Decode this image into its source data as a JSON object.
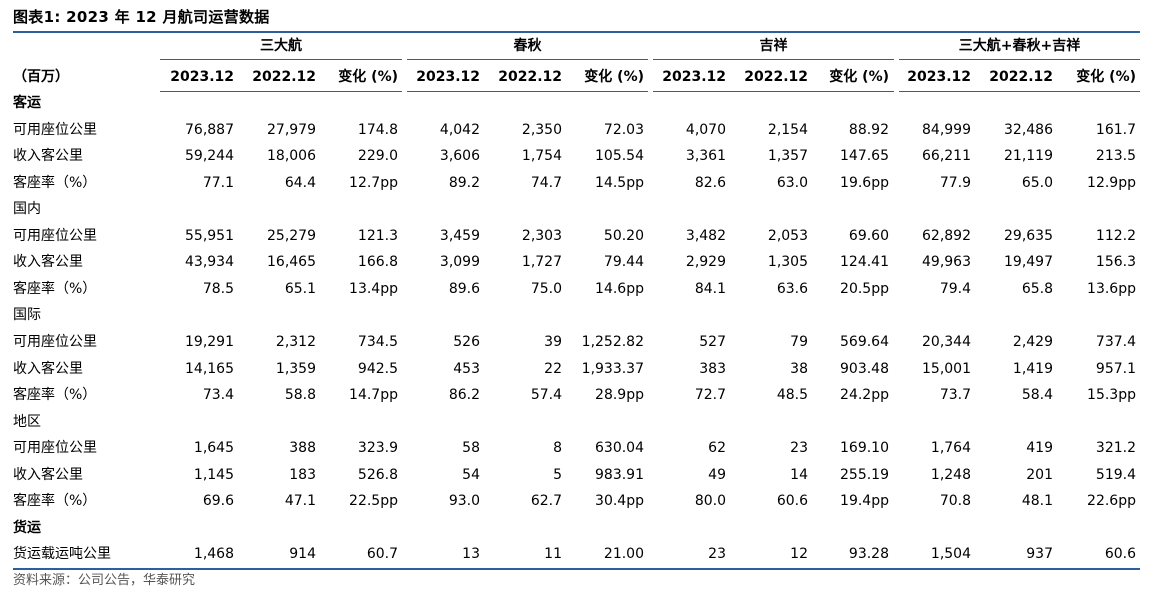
{
  "title": "图表1:  2023 年 12 月航司运营数据",
  "groups": [
    "三大航",
    "春秋",
    "吉祥",
    "三大航+春秋+吉祥"
  ],
  "unit_label": "（百万）",
  "column_headers": [
    "2023.12",
    "2022.12",
    "变化 (%)"
  ],
  "rows": [
    {
      "label": "客运",
      "bold": true,
      "values": []
    },
    {
      "label": "可用座位公里",
      "values": [
        "76,887",
        "27,979",
        "174.8",
        "4,042",
        "2,350",
        "72.03",
        "4,070",
        "2,154",
        "88.92",
        "84,999",
        "32,486",
        "161.7"
      ]
    },
    {
      "label": "收入客公里",
      "values": [
        "59,244",
        "18,006",
        "229.0",
        "3,606",
        "1,754",
        "105.54",
        "3,361",
        "1,357",
        "147.65",
        "66,211",
        "21,119",
        "213.5"
      ]
    },
    {
      "label": "客座率（%）",
      "values": [
        "77.1",
        "64.4",
        "12.7pp",
        "89.2",
        "74.7",
        "14.5pp",
        "82.6",
        "63.0",
        "19.6pp",
        "77.9",
        "65.0",
        "12.9pp"
      ]
    },
    {
      "label": "国内",
      "values": []
    },
    {
      "label": "可用座位公里",
      "values": [
        "55,951",
        "25,279",
        "121.3",
        "3,459",
        "2,303",
        "50.20",
        "3,482",
        "2,053",
        "69.60",
        "62,892",
        "29,635",
        "112.2"
      ]
    },
    {
      "label": "收入客公里",
      "values": [
        "43,934",
        "16,465",
        "166.8",
        "3,099",
        "1,727",
        "79.44",
        "2,929",
        "1,305",
        "124.41",
        "49,963",
        "19,497",
        "156.3"
      ]
    },
    {
      "label": "客座率（%）",
      "values": [
        "78.5",
        "65.1",
        "13.4pp",
        "89.6",
        "75.0",
        "14.6pp",
        "84.1",
        "63.6",
        "20.5pp",
        "79.4",
        "65.8",
        "13.6pp"
      ]
    },
    {
      "label": "国际",
      "values": []
    },
    {
      "label": "可用座位公里",
      "values": [
        "19,291",
        "2,312",
        "734.5",
        "526",
        "39",
        "1,252.82",
        "527",
        "79",
        "569.64",
        "20,344",
        "2,429",
        "737.4"
      ]
    },
    {
      "label": "收入客公里",
      "values": [
        "14,165",
        "1,359",
        "942.5",
        "453",
        "22",
        "1,933.37",
        "383",
        "38",
        "903.48",
        "15,001",
        "1,419",
        "957.1"
      ]
    },
    {
      "label": "客座率（%）",
      "values": [
        "73.4",
        "58.8",
        "14.7pp",
        "86.2",
        "57.4",
        "28.9pp",
        "72.7",
        "48.5",
        "24.2pp",
        "73.7",
        "58.4",
        "15.3pp"
      ]
    },
    {
      "label": "地区",
      "values": []
    },
    {
      "label": "可用座位公里",
      "values": [
        "1,645",
        "388",
        "323.9",
        "58",
        "8",
        "630.04",
        "62",
        "23",
        "169.10",
        "1,764",
        "419",
        "321.2"
      ]
    },
    {
      "label": "收入客公里",
      "values": [
        "1,145",
        "183",
        "526.8",
        "54",
        "5",
        "983.91",
        "49",
        "14",
        "255.19",
        "1,248",
        "201",
        "519.4"
      ]
    },
    {
      "label": "客座率（%）",
      "values": [
        "69.6",
        "47.1",
        "22.5pp",
        "93.0",
        "62.7",
        "30.4pp",
        "80.0",
        "60.6",
        "19.4pp",
        "70.8",
        "48.1",
        "22.6pp"
      ]
    },
    {
      "label": "货运",
      "bold": true,
      "values": []
    },
    {
      "label": "货运载运吨公里",
      "values": [
        "1,468",
        "914",
        "60.7",
        "13",
        "11",
        "21.00",
        "23",
        "12",
        "93.28",
        "1,504",
        "937",
        "60.6"
      ]
    }
  ],
  "source": "资料来源：公司公告，华泰研究",
  "colors": {
    "rule": "#2b5f9e"
  }
}
